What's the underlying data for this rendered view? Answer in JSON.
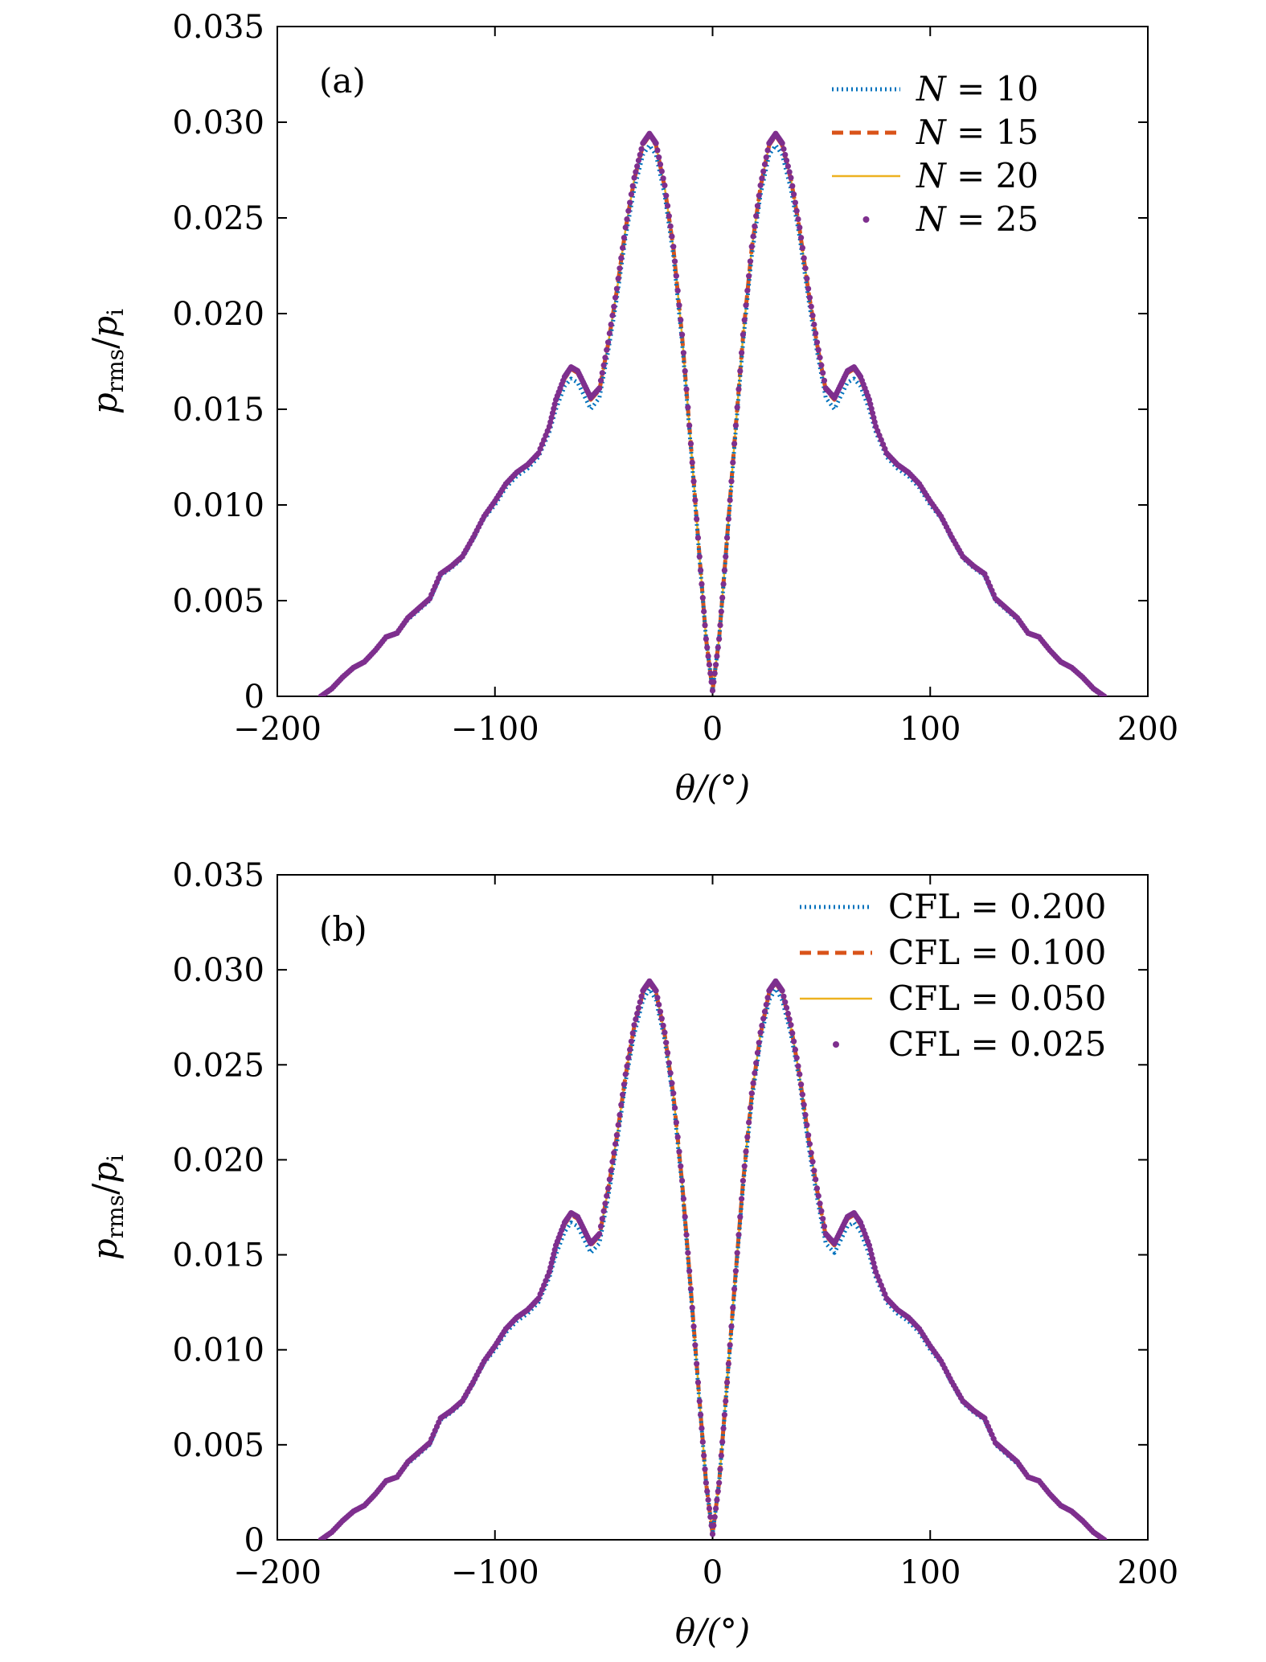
{
  "chart_data": [
    {
      "panel_label": "(a)",
      "type": "line",
      "xlabel": "θ/(°)",
      "ylabel": "p_rms/p_i",
      "ylabel_parts": {
        "main": "p",
        "sub1": "rms",
        "slash": "/",
        "main2": "p",
        "sub2": "i"
      },
      "xlim": [
        -200,
        200
      ],
      "ylim": [
        0,
        0.035
      ],
      "xticks": [
        -200,
        -100,
        0,
        100,
        200
      ],
      "xtick_labels": [
        "−200",
        "−100",
        "0",
        "100",
        "200"
      ],
      "yticks": [
        0,
        0.005,
        0.01,
        0.015,
        0.02,
        0.025,
        0.03,
        0.035
      ],
      "ytick_labels": [
        "0",
        "0.005",
        "0.010",
        "0.015",
        "0.020",
        "0.025",
        "0.030",
        "0.035"
      ],
      "legend_position": "top-right",
      "x": [
        -180,
        -175,
        -170,
        -165,
        -160,
        -155,
        -150,
        -145,
        -140,
        -135,
        -130,
        -125,
        -120,
        -115,
        -110,
        -105,
        -100,
        -95,
        -90,
        -85,
        -80,
        -75,
        -72,
        -68,
        -65,
        -62,
        -59,
        -56,
        -52,
        -48,
        -44,
        -40,
        -36,
        -32,
        -29,
        -26,
        -22,
        -18,
        -14,
        -10,
        -6,
        -3,
        0,
        3,
        6,
        10,
        14,
        18,
        22,
        26,
        29,
        32,
        36,
        40,
        44,
        48,
        52,
        56,
        59,
        62,
        65,
        68,
        72,
        75,
        80,
        85,
        90,
        95,
        100,
        105,
        110,
        115,
        120,
        125,
        130,
        135,
        140,
        145,
        150,
        155,
        160,
        165,
        170,
        175,
        180
      ],
      "series": [
        {
          "name": "N = 10",
          "label_prefix": "N",
          "label_value": "= 10",
          "color": "#0072bd",
          "style": "dotted",
          "values": [
            0,
            0.0004,
            0.001,
            0.0015,
            0.0018,
            0.0024,
            0.0031,
            0.0033,
            0.004,
            0.0045,
            0.005,
            0.0063,
            0.0067,
            0.0072,
            0.0082,
            0.0093,
            0.01,
            0.0109,
            0.0115,
            0.0119,
            0.0125,
            0.0138,
            0.015,
            0.0162,
            0.0166,
            0.0164,
            0.0157,
            0.015,
            0.0156,
            0.018,
            0.0208,
            0.024,
            0.0265,
            0.0283,
            0.0288,
            0.0283,
            0.0262,
            0.023,
            0.0185,
            0.013,
            0.0072,
            0.003,
            0.0003,
            0.003,
            0.0072,
            0.013,
            0.0185,
            0.023,
            0.0262,
            0.0283,
            0.0288,
            0.0283,
            0.0265,
            0.024,
            0.0208,
            0.018,
            0.0156,
            0.015,
            0.0157,
            0.0164,
            0.0166,
            0.0162,
            0.015,
            0.0138,
            0.0125,
            0.0119,
            0.0115,
            0.0109,
            0.01,
            0.0093,
            0.0082,
            0.0072,
            0.0067,
            0.0063,
            0.005,
            0.0045,
            0.004,
            0.0033,
            0.0031,
            0.0024,
            0.0018,
            0.0015,
            0.001,
            0.0004,
            0
          ]
        },
        {
          "name": "N = 15",
          "label_prefix": "N",
          "label_value": "= 15",
          "color": "#d95319",
          "style": "dashed",
          "values": [
            0,
            0.0004,
            0.001,
            0.0015,
            0.0018,
            0.0024,
            0.0031,
            0.0033,
            0.0041,
            0.0046,
            0.0051,
            0.0064,
            0.0068,
            0.0073,
            0.0083,
            0.0094,
            0.0102,
            0.0111,
            0.0117,
            0.0121,
            0.0127,
            0.0141,
            0.0154,
            0.0166,
            0.0171,
            0.0169,
            0.0162,
            0.0155,
            0.016,
            0.0184,
            0.0212,
            0.0244,
            0.027,
            0.0288,
            0.0293,
            0.0288,
            0.0266,
            0.0234,
            0.0188,
            0.0132,
            0.0073,
            0.003,
            0.0003,
            0.003,
            0.0073,
            0.0132,
            0.0188,
            0.0234,
            0.0266,
            0.0288,
            0.0293,
            0.0288,
            0.027,
            0.0244,
            0.0212,
            0.0184,
            0.016,
            0.0155,
            0.0162,
            0.0169,
            0.0171,
            0.0166,
            0.0154,
            0.0141,
            0.0127,
            0.0121,
            0.0117,
            0.0111,
            0.0102,
            0.0094,
            0.0083,
            0.0073,
            0.0068,
            0.0064,
            0.0051,
            0.0046,
            0.0041,
            0.0033,
            0.0031,
            0.0024,
            0.0018,
            0.0015,
            0.001,
            0.0004,
            0
          ]
        },
        {
          "name": "N = 20",
          "label_prefix": "N",
          "label_value": "= 20",
          "color": "#edb120",
          "style": "solid",
          "values": [
            0,
            0.0004,
            0.001,
            0.0015,
            0.0018,
            0.0024,
            0.0031,
            0.0033,
            0.0041,
            0.0046,
            0.0051,
            0.0064,
            0.0068,
            0.0073,
            0.0083,
            0.0094,
            0.0102,
            0.0111,
            0.0117,
            0.0121,
            0.0127,
            0.0141,
            0.0154,
            0.0166,
            0.0171,
            0.0169,
            0.0162,
            0.0155,
            0.016,
            0.0184,
            0.0212,
            0.0244,
            0.027,
            0.0288,
            0.0293,
            0.0288,
            0.0266,
            0.0234,
            0.0188,
            0.0132,
            0.0073,
            0.003,
            0.0003,
            0.003,
            0.0073,
            0.0132,
            0.0188,
            0.0234,
            0.0266,
            0.0288,
            0.0293,
            0.0288,
            0.027,
            0.0244,
            0.0212,
            0.0184,
            0.016,
            0.0155,
            0.0162,
            0.0169,
            0.0171,
            0.0166,
            0.0154,
            0.0141,
            0.0127,
            0.0121,
            0.0117,
            0.0111,
            0.0102,
            0.0094,
            0.0083,
            0.0073,
            0.0068,
            0.0064,
            0.0051,
            0.0046,
            0.0041,
            0.0033,
            0.0031,
            0.0024,
            0.0018,
            0.0015,
            0.001,
            0.0004,
            0
          ]
        },
        {
          "name": "N = 25",
          "label_prefix": "N",
          "label_value": "= 25",
          "color": "#7e2f8e",
          "style": "points",
          "values": [
            0,
            0.0004,
            0.001,
            0.0015,
            0.0018,
            0.0024,
            0.0031,
            0.0033,
            0.0041,
            0.0046,
            0.0051,
            0.0064,
            0.0068,
            0.0073,
            0.0083,
            0.0094,
            0.0102,
            0.0111,
            0.0117,
            0.0121,
            0.0127,
            0.0141,
            0.0155,
            0.0167,
            0.0172,
            0.017,
            0.0163,
            0.0156,
            0.0161,
            0.0185,
            0.0213,
            0.0245,
            0.0271,
            0.0289,
            0.0294,
            0.0289,
            0.0267,
            0.0235,
            0.0189,
            0.0132,
            0.0073,
            0.003,
            0.0003,
            0.003,
            0.0073,
            0.0132,
            0.0189,
            0.0235,
            0.0267,
            0.0289,
            0.0294,
            0.0289,
            0.0271,
            0.0245,
            0.0213,
            0.0185,
            0.0161,
            0.0156,
            0.0163,
            0.017,
            0.0172,
            0.0167,
            0.0155,
            0.0141,
            0.0127,
            0.0121,
            0.0117,
            0.0111,
            0.0102,
            0.0094,
            0.0083,
            0.0073,
            0.0068,
            0.0064,
            0.0051,
            0.0046,
            0.0041,
            0.0033,
            0.0031,
            0.0024,
            0.0018,
            0.0015,
            0.001,
            0.0004,
            0
          ]
        }
      ]
    },
    {
      "panel_label": "(b)",
      "type": "line",
      "xlabel": "θ/(°)",
      "ylabel": "p_rms/p_i",
      "ylabel_parts": {
        "main": "p",
        "sub1": "rms",
        "slash": "/",
        "main2": "p",
        "sub2": "i"
      },
      "xlim": [
        -200,
        200
      ],
      "ylim": [
        0,
        0.035
      ],
      "xticks": [
        -200,
        -100,
        0,
        100,
        200
      ],
      "xtick_labels": [
        "−200",
        "−100",
        "0",
        "100",
        "200"
      ],
      "yticks": [
        0,
        0.005,
        0.01,
        0.015,
        0.02,
        0.025,
        0.03,
        0.035
      ],
      "ytick_labels": [
        "0",
        "0.005",
        "0.010",
        "0.015",
        "0.020",
        "0.025",
        "0.030",
        "0.035"
      ],
      "legend_position": "top-right",
      "x": [
        -180,
        -175,
        -170,
        -165,
        -160,
        -155,
        -150,
        -145,
        -140,
        -135,
        -130,
        -125,
        -120,
        -115,
        -110,
        -105,
        -100,
        -95,
        -90,
        -85,
        -80,
        -75,
        -72,
        -68,
        -65,
        -62,
        -59,
        -56,
        -52,
        -48,
        -44,
        -40,
        -36,
        -32,
        -29,
        -26,
        -22,
        -18,
        -14,
        -10,
        -6,
        -3,
        0,
        3,
        6,
        10,
        14,
        18,
        22,
        26,
        29,
        32,
        36,
        40,
        44,
        48,
        52,
        56,
        59,
        62,
        65,
        68,
        72,
        75,
        80,
        85,
        90,
        95,
        100,
        105,
        110,
        115,
        120,
        125,
        130,
        135,
        140,
        145,
        150,
        155,
        160,
        165,
        170,
        175,
        180
      ],
      "series": [
        {
          "name": "CFL = 0.200",
          "label_prefix": "CFL",
          "label_value": "= 0.200",
          "color": "#0072bd",
          "style": "dotted",
          "values": [
            0,
            0.0004,
            0.001,
            0.0015,
            0.0018,
            0.0024,
            0.0031,
            0.0033,
            0.004,
            0.0045,
            0.005,
            0.0063,
            0.0067,
            0.0072,
            0.0082,
            0.0093,
            0.01,
            0.0109,
            0.0115,
            0.0119,
            0.0125,
            0.0138,
            0.015,
            0.0162,
            0.0167,
            0.0165,
            0.0158,
            0.0151,
            0.0156,
            0.018,
            0.0208,
            0.0241,
            0.0266,
            0.0284,
            0.029,
            0.0284,
            0.0263,
            0.0231,
            0.0186,
            0.013,
            0.0072,
            0.003,
            0.0003,
            0.003,
            0.0072,
            0.013,
            0.0186,
            0.0231,
            0.0263,
            0.0284,
            0.029,
            0.0284,
            0.0266,
            0.0241,
            0.0208,
            0.018,
            0.0156,
            0.0151,
            0.0158,
            0.0165,
            0.0167,
            0.0162,
            0.015,
            0.0138,
            0.0125,
            0.0119,
            0.0115,
            0.0109,
            0.01,
            0.0093,
            0.0082,
            0.0072,
            0.0067,
            0.0063,
            0.005,
            0.0045,
            0.004,
            0.0033,
            0.0031,
            0.0024,
            0.0018,
            0.0015,
            0.001,
            0.0004,
            0
          ]
        },
        {
          "name": "CFL = 0.100",
          "label_prefix": "CFL",
          "label_value": "= 0.100",
          "color": "#d95319",
          "style": "dashed",
          "values": [
            0,
            0.0004,
            0.001,
            0.0015,
            0.0018,
            0.0024,
            0.0031,
            0.0033,
            0.0041,
            0.0046,
            0.0051,
            0.0064,
            0.0068,
            0.0073,
            0.0083,
            0.0094,
            0.0102,
            0.0111,
            0.0117,
            0.0121,
            0.0127,
            0.0141,
            0.0154,
            0.0166,
            0.0171,
            0.0169,
            0.0162,
            0.0155,
            0.016,
            0.0184,
            0.0212,
            0.0244,
            0.027,
            0.0288,
            0.0293,
            0.0288,
            0.0266,
            0.0234,
            0.0188,
            0.0132,
            0.0073,
            0.003,
            0.0003,
            0.003,
            0.0073,
            0.0132,
            0.0188,
            0.0234,
            0.0266,
            0.0288,
            0.0293,
            0.0288,
            0.027,
            0.0244,
            0.0212,
            0.0184,
            0.016,
            0.0155,
            0.0162,
            0.0169,
            0.0171,
            0.0166,
            0.0154,
            0.0141,
            0.0127,
            0.0121,
            0.0117,
            0.0111,
            0.0102,
            0.0094,
            0.0083,
            0.0073,
            0.0068,
            0.0064,
            0.0051,
            0.0046,
            0.0041,
            0.0033,
            0.0031,
            0.0024,
            0.0018,
            0.0015,
            0.001,
            0.0004,
            0
          ]
        },
        {
          "name": "CFL = 0.050",
          "label_prefix": "CFL",
          "label_value": "= 0.050",
          "color": "#edb120",
          "style": "solid",
          "values": [
            0,
            0.0004,
            0.001,
            0.0015,
            0.0018,
            0.0024,
            0.0031,
            0.0033,
            0.0041,
            0.0046,
            0.0051,
            0.0064,
            0.0068,
            0.0073,
            0.0083,
            0.0094,
            0.0102,
            0.0111,
            0.0117,
            0.0121,
            0.0127,
            0.0141,
            0.0154,
            0.0166,
            0.0171,
            0.0169,
            0.0162,
            0.0155,
            0.016,
            0.0184,
            0.0212,
            0.0244,
            0.027,
            0.0288,
            0.0293,
            0.0288,
            0.0266,
            0.0234,
            0.0188,
            0.0132,
            0.0073,
            0.003,
            0.0003,
            0.003,
            0.0073,
            0.0132,
            0.0188,
            0.0234,
            0.0266,
            0.0288,
            0.0293,
            0.0288,
            0.027,
            0.0244,
            0.0212,
            0.0184,
            0.016,
            0.0155,
            0.0162,
            0.0169,
            0.0171,
            0.0166,
            0.0154,
            0.0141,
            0.0127,
            0.0121,
            0.0117,
            0.0111,
            0.0102,
            0.0094,
            0.0083,
            0.0073,
            0.0068,
            0.0064,
            0.0051,
            0.0046,
            0.0041,
            0.0033,
            0.0031,
            0.0024,
            0.0018,
            0.0015,
            0.001,
            0.0004,
            0
          ]
        },
        {
          "name": "CFL = 0.025",
          "label_prefix": "CFL",
          "label_value": "= 0.025",
          "color": "#7e2f8e",
          "style": "points",
          "values": [
            0,
            0.0004,
            0.001,
            0.0015,
            0.0018,
            0.0024,
            0.0031,
            0.0033,
            0.0041,
            0.0046,
            0.0051,
            0.0064,
            0.0068,
            0.0073,
            0.0083,
            0.0094,
            0.0102,
            0.0111,
            0.0117,
            0.0121,
            0.0127,
            0.0141,
            0.0155,
            0.0167,
            0.0172,
            0.017,
            0.0163,
            0.0156,
            0.0161,
            0.0185,
            0.0213,
            0.0245,
            0.0271,
            0.0289,
            0.0294,
            0.0289,
            0.0267,
            0.0235,
            0.0189,
            0.0132,
            0.0073,
            0.003,
            0.0003,
            0.003,
            0.0073,
            0.0132,
            0.0189,
            0.0235,
            0.0267,
            0.0289,
            0.0294,
            0.0289,
            0.0271,
            0.0245,
            0.0213,
            0.0185,
            0.0161,
            0.0156,
            0.0163,
            0.017,
            0.0172,
            0.0167,
            0.0155,
            0.0141,
            0.0127,
            0.0121,
            0.0117,
            0.0111,
            0.0102,
            0.0094,
            0.0083,
            0.0073,
            0.0068,
            0.0064,
            0.0051,
            0.0046,
            0.0041,
            0.0033,
            0.0031,
            0.0024,
            0.0018,
            0.0015,
            0.001,
            0.0004,
            0
          ]
        }
      ]
    }
  ]
}
